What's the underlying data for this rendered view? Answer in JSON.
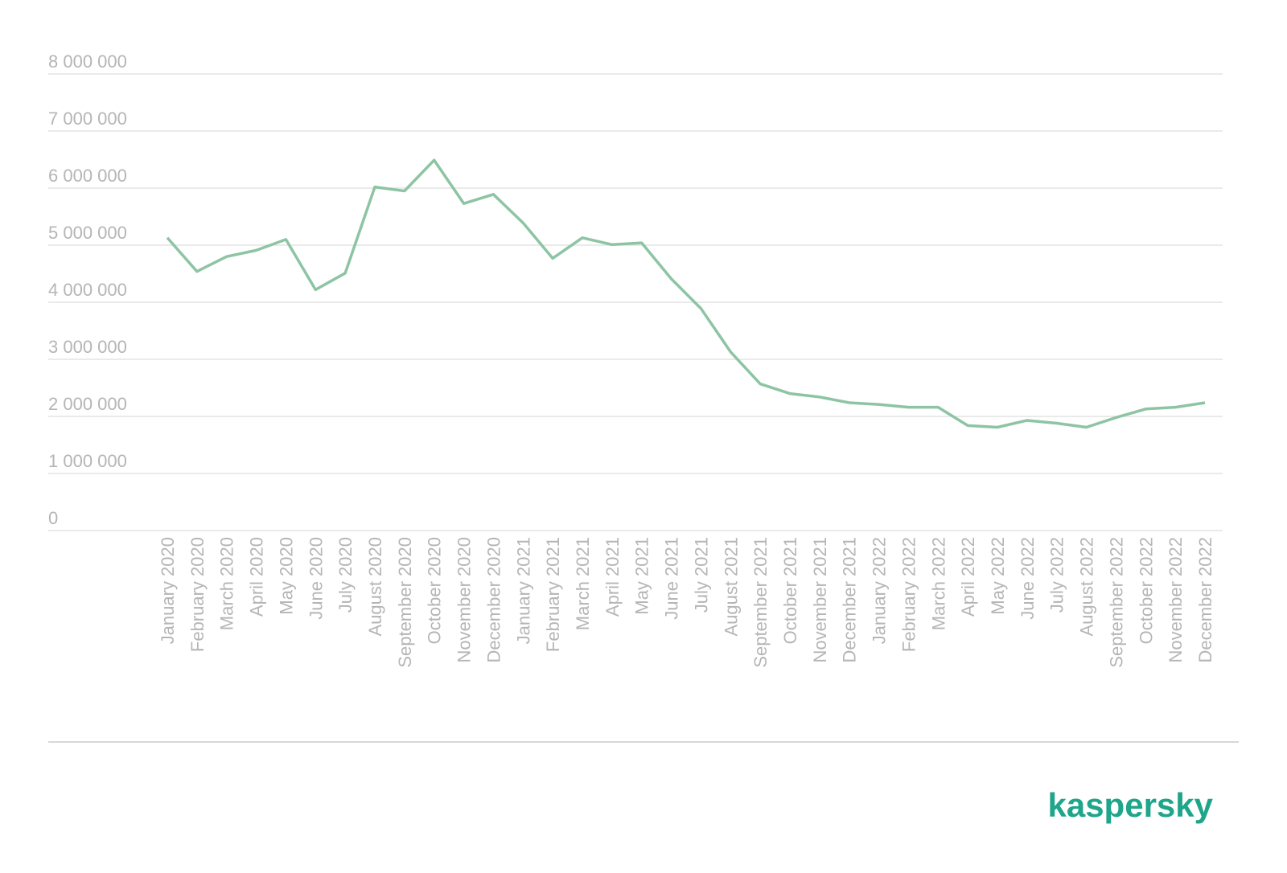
{
  "chart_data": {
    "type": "line",
    "categories": [
      "January 2020",
      "February 2020",
      "March 2020",
      "April 2020",
      "May 2020",
      "June 2020",
      "July 2020",
      "August 2020",
      "September 2020",
      "October 2020",
      "November 2020",
      "December 2020",
      "January 2021",
      "February 2021",
      "March 2021",
      "April 2021",
      "May 2021",
      "June 2021",
      "July 2021",
      "August 2021",
      "September 2021",
      "October 2021",
      "November 2021",
      "December 2021",
      "January 2022",
      "February 2022",
      "March 2022",
      "April 2022",
      "May 2022",
      "June 2022",
      "July 2022",
      "August 2022",
      "September 2022",
      "October 2022",
      "November 2022",
      "December 2022"
    ],
    "series": [
      {
        "color": "#8dc4a3",
        "values": [
          5130000,
          4540000,
          4800000,
          4910000,
          5100000,
          4220000,
          4510000,
          6020000,
          5950000,
          6490000,
          5730000,
          5890000,
          5390000,
          4770000,
          5130000,
          5010000,
          5040000,
          4410000,
          3890000,
          3130000,
          2570000,
          2400000,
          2340000,
          2240000,
          2210000,
          2160000,
          2160000,
          1840000,
          1810000,
          1930000,
          1880000,
          1810000,
          1980000,
          2130000,
          2160000,
          2240000
        ]
      }
    ],
    "ylim": [
      0,
      8000000
    ],
    "yticks": [
      0,
      {
        "value": 1000000,
        "label": "1 000 000"
      },
      {
        "value": 2000000,
        "label": "2 000 000"
      },
      {
        "value": 3000000,
        "label": "3 000 000"
      },
      {
        "value": 4000000,
        "label": "4 000 000"
      },
      {
        "value": 5000000,
        "label": "5 000 000"
      },
      {
        "value": 6000000,
        "label": "6 000 000"
      },
      {
        "value": 7000000,
        "label": "7 000 000"
      },
      {
        "value": 8000000,
        "label": "8 000 000"
      }
    ],
    "grid": true
  },
  "brand": "kaspersky"
}
